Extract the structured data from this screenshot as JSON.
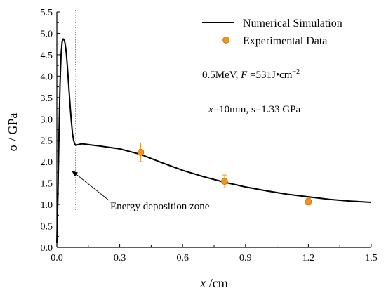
{
  "chart_data": {
    "type": "line",
    "x_axis": {
      "label_var": "x",
      "label_unit": " /cm",
      "range": [
        0,
        1.5
      ],
      "ticks": [
        0.0,
        0.3,
        0.6,
        0.9,
        1.2,
        1.5
      ],
      "tick_labels": [
        "0.0",
        "0.3",
        "0.6",
        "0.9",
        "1.2",
        "1.5"
      ]
    },
    "y_axis": {
      "label": "σ  / GPa",
      "range": [
        0,
        5.5
      ],
      "ticks": [
        0.0,
        0.5,
        1.0,
        1.5,
        2.0,
        2.5,
        3.0,
        3.5,
        4.0,
        4.5,
        5.0,
        5.5
      ],
      "tick_labels": [
        "0.0",
        "0.5",
        "1.0",
        "1.5",
        "2.0",
        "2.5",
        "3.0",
        "3.5",
        "4.0",
        "4.5",
        "5.0",
        "5.5"
      ]
    },
    "grid": false,
    "legend_position": "top-right",
    "series": [
      {
        "name": "Numerical Simulation",
        "kind": "line",
        "color": "#000000",
        "x": [
          0.0,
          0.005,
          0.01,
          0.015,
          0.02,
          0.025,
          0.03,
          0.035,
          0.04,
          0.045,
          0.05,
          0.055,
          0.06,
          0.065,
          0.07,
          0.075,
          0.08,
          0.085,
          0.09,
          0.1,
          0.12,
          0.15,
          0.2,
          0.3,
          0.4,
          0.5,
          0.6,
          0.7,
          0.8,
          0.9,
          1.0,
          1.1,
          1.2,
          1.3,
          1.4,
          1.5
        ],
        "y": [
          0.1,
          1.2,
          2.6,
          3.8,
          4.5,
          4.8,
          4.87,
          4.85,
          4.75,
          4.55,
          4.25,
          3.9,
          3.55,
          3.2,
          2.9,
          2.65,
          2.5,
          2.42,
          2.38,
          2.4,
          2.42,
          2.4,
          2.37,
          2.3,
          2.17,
          1.98,
          1.8,
          1.65,
          1.52,
          1.41,
          1.32,
          1.24,
          1.18,
          1.12,
          1.08,
          1.05
        ]
      },
      {
        "name": "Experimental Data",
        "kind": "scatter",
        "color": "#f0961e",
        "x": [
          0.4,
          0.8,
          1.2
        ],
        "y": [
          2.22,
          1.54,
          1.07
        ],
        "err": [
          0.22,
          0.15,
          0.08
        ]
      }
    ],
    "annotations": {
      "params_line1_a": "0.5MeV,  ",
      "params_line1_f": "F",
      "params_line1_b": " =531J•cm",
      "params_line1_sup": "−2",
      "params_line2_x": "x",
      "params_line2_b": "=10mm, s=1.33 GPa",
      "zone_label": "Energy deposition zone",
      "zone_x": 0.09
    }
  }
}
